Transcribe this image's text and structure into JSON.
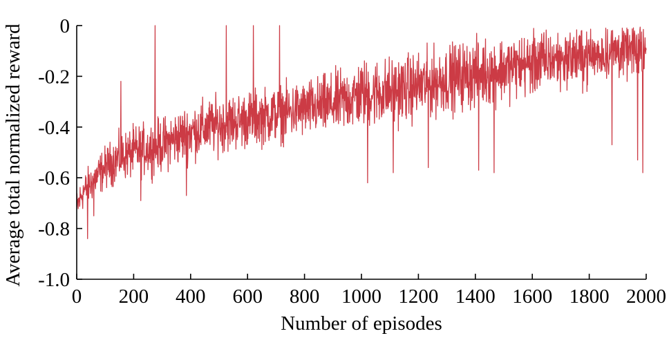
{
  "chart_data": {
    "type": "line",
    "title": "",
    "xlabel": "Number of episodes",
    "ylabel": "Average total normalized reward",
    "xlim": [
      0,
      2000
    ],
    "ylim": [
      -1.0,
      0
    ],
    "xticks": [
      0,
      200,
      400,
      600,
      800,
      1000,
      1200,
      1400,
      1600,
      1800,
      2000
    ],
    "xtick_labels": [
      "0",
      "200",
      "400",
      "600",
      "800",
      "1000",
      "1200",
      "1400",
      "1600",
      "1800",
      "2000"
    ],
    "yticks": [
      0,
      -0.2,
      -0.4,
      -0.6,
      -0.8,
      -1.0
    ],
    "ytick_labels": [
      "0",
      "-0.2",
      "-0.4",
      "-0.6",
      "-0.8",
      "-1.0"
    ],
    "grid": false,
    "legend": "none",
    "series": [
      {
        "color": "#cc3b45",
        "trend": {
          "x": [
            0,
            20,
            50,
            100,
            150,
            200,
            300,
            400,
            500,
            600,
            700,
            800,
            900,
            1000,
            1100,
            1200,
            1300,
            1400,
            1500,
            1600,
            1700,
            1800,
            1900,
            2000
          ],
          "y": [
            -0.72,
            -0.66,
            -0.62,
            -0.56,
            -0.52,
            -0.5,
            -0.47,
            -0.42,
            -0.39,
            -0.37,
            -0.35,
            -0.33,
            -0.31,
            -0.27,
            -0.26,
            -0.24,
            -0.21,
            -0.19,
            -0.17,
            -0.15,
            -0.13,
            -0.12,
            -0.1,
            -0.1
          ]
        },
        "noise_band": {
          "x": [
            0,
            200,
            400,
            800,
            1000,
            1400,
            1800,
            2000
          ],
          "half_width": [
            0.06,
            0.09,
            0.1,
            0.1,
            0.12,
            0.12,
            0.1,
            0.1
          ]
        },
        "spikes": [
          {
            "x": 275,
            "y": 0.0
          },
          {
            "x": 525,
            "y": 0.0
          },
          {
            "x": 620,
            "y": 0.0
          },
          {
            "x": 712,
            "y": 0.0
          },
          {
            "x": 38,
            "y": -0.84
          },
          {
            "x": 60,
            "y": -0.75
          },
          {
            "x": 155,
            "y": -0.22
          },
          {
            "x": 225,
            "y": -0.69
          },
          {
            "x": 385,
            "y": -0.67
          },
          {
            "x": 1022,
            "y": -0.62
          },
          {
            "x": 1112,
            "y": -0.58
          },
          {
            "x": 1235,
            "y": -0.56
          },
          {
            "x": 1412,
            "y": -0.57
          },
          {
            "x": 1466,
            "y": -0.58
          },
          {
            "x": 1970,
            "y": -0.53
          },
          {
            "x": 1988,
            "y": -0.58
          },
          {
            "x": 1880,
            "y": -0.47
          }
        ],
        "n_points": 2000
      }
    ]
  }
}
